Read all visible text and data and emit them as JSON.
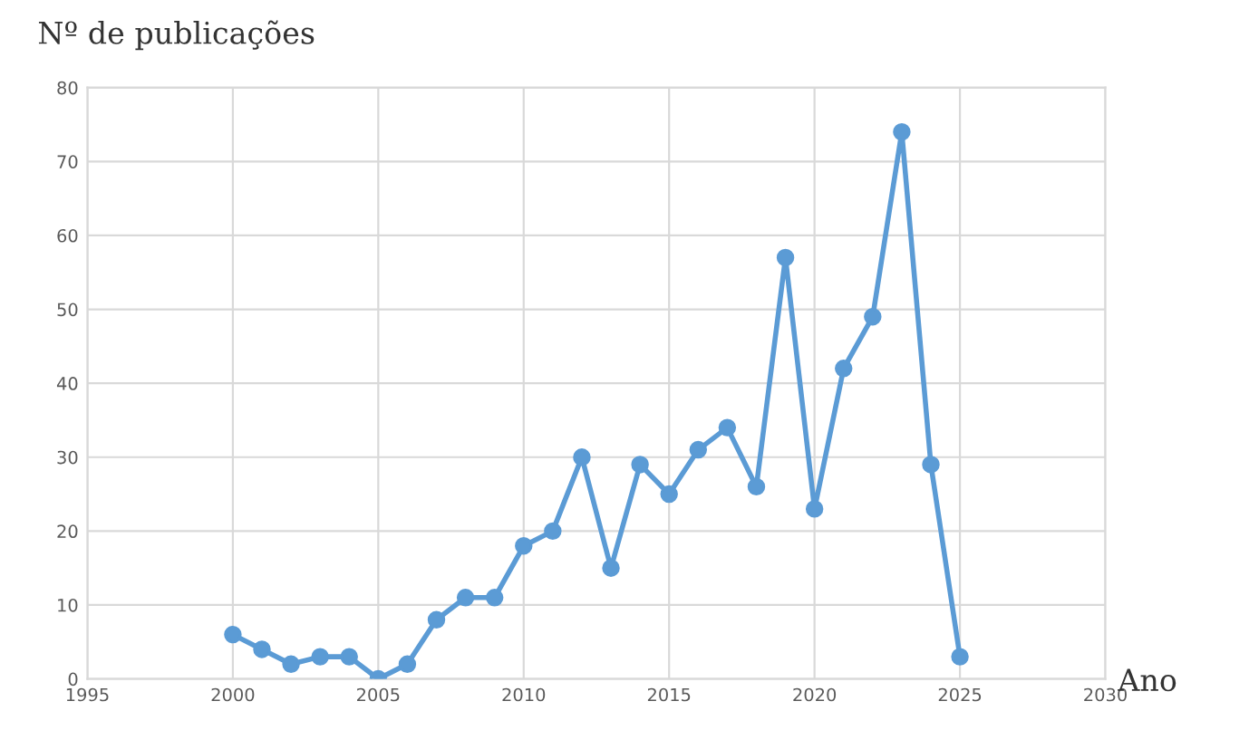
{
  "chart_data": {
    "type": "line",
    "ylabel": "Nº de publicações",
    "xlabel": "Ano",
    "x": [
      2000,
      2001,
      2002,
      2003,
      2004,
      2005,
      2006,
      2007,
      2008,
      2009,
      2010,
      2011,
      2012,
      2013,
      2014,
      2015,
      2016,
      2017,
      2018,
      2019,
      2020,
      2021,
      2022,
      2023,
      2024,
      2025
    ],
    "series": [
      {
        "color": "#5b9bd5",
        "values": [
          6,
          4,
          2,
          3,
          3,
          0,
          2,
          8,
          11,
          11,
          18,
          20,
          30,
          15,
          29,
          25,
          31,
          34,
          26,
          57,
          23,
          42,
          49,
          74,
          29,
          3
        ]
      }
    ],
    "xlim": [
      1995,
      2030
    ],
    "xticks": [
      1995,
      2000,
      2005,
      2010,
      2015,
      2020,
      2025,
      2030
    ],
    "ylim": [
      0,
      80
    ],
    "yticks": [
      0,
      10,
      20,
      30,
      40,
      50,
      60,
      70,
      80
    ],
    "grid": true,
    "marker": "circle",
    "line_style": "solid",
    "legend": false
  }
}
